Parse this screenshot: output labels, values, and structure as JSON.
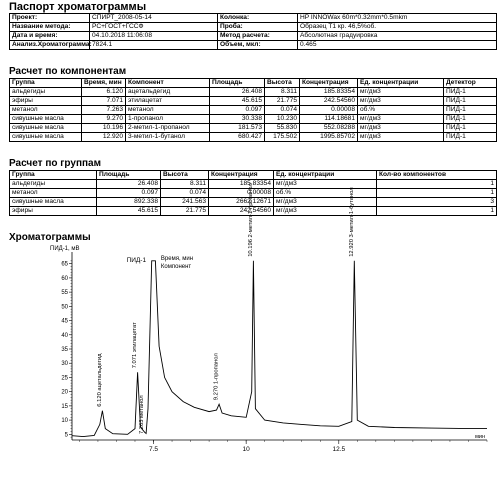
{
  "passport": {
    "title": "Паспорт хроматограммы",
    "rows": [
      {
        "label": "Проект:",
        "value": "СПИРТ_2008-05-14",
        "label2": "Колонка:",
        "value2": "HP INNOWax 60m*0.32mm*0.5mkm"
      },
      {
        "label": "Название метода:",
        "value": "РС+ГОСТ+ГССФ",
        "label2": "Проба:",
        "value2": "Образец Т1 кр. 46,5%об."
      },
      {
        "label": "Дата и время:",
        "value": "04.10.2018 11:06:08",
        "label2": "Метод расчета:",
        "value2": "Абсолютная градуировка"
      },
      {
        "label": "Анализ.Хроматограмма:",
        "value": "7824.1",
        "label2": "Объем, мкл:",
        "value2": "0.465"
      }
    ]
  },
  "components": {
    "title": "Расчет по компонентам",
    "headers": [
      "Группа",
      "Время, мин",
      "Компонент",
      "Площадь",
      "Высота",
      "Концентрация",
      "Ед. концентрации",
      "Детектор"
    ],
    "rows": [
      [
        "альдегиды",
        "6.120",
        "ацетальдегид",
        "26.408",
        "8.311",
        "185.83354",
        "мг/дм3",
        "ПИД-1"
      ],
      [
        "эфиры",
        "7.071",
        "этилацетат",
        "45.615",
        "21.775",
        "242.54560",
        "мг/дм3",
        "ПИД-1"
      ],
      [
        "метанол",
        "7.263",
        "метанол",
        "0.097",
        "0.074",
        "0.00008",
        "об.%",
        "ПИД-1"
      ],
      [
        "сивушные масла",
        "9.270",
        "1-пропанол",
        "30.338",
        "10.230",
        "114.18681",
        "мг/дм3",
        "ПИД-1"
      ],
      [
        "сивушные масла",
        "10.196",
        "2-метил-1-пропанол",
        "181.573",
        "55.830",
        "552.08288",
        "мг/дм3",
        "ПИД-1"
      ],
      [
        "сивушные масла",
        "12.920",
        "3-метил-1-бутанол",
        "680.427",
        "175.502",
        "1995.85702",
        "мг/дм3",
        "ПИД-1"
      ]
    ]
  },
  "groups": {
    "title": "Расчет по группам",
    "headers": [
      "Группа",
      "Площадь",
      "Высота",
      "Концентрация",
      "Ед. концентрации",
      "Кол-во компонентов"
    ],
    "rows": [
      [
        "альдегиды",
        "26.408",
        "8.311",
        "185.83354",
        "мг/дм3",
        "1"
      ],
      [
        "метанол",
        "0.097",
        "0.074",
        "0.00008",
        "об.%",
        "1"
      ],
      [
        "сивушные масла",
        "892.338",
        "241.563",
        "2662.12671",
        "мг/дм3",
        "3"
      ],
      [
        "эфиры",
        "45.615",
        "21.775",
        "242.54560",
        "мг/дм3",
        "1"
      ]
    ]
  },
  "chromatogram": {
    "title": "Хроматограммы",
    "y_axis_label": "ПИД-1, мВ",
    "trace_label": "ПИД-1",
    "legend_line1": "Время, мин",
    "legend_line2": "Компонент",
    "x_unit": "мин",
    "x_ticks": [
      "7.5",
      "10",
      "12.5"
    ],
    "y_ticks": [
      "65",
      "60",
      "55",
      "50",
      "45",
      "40",
      "35",
      "30",
      "25",
      "20",
      "15",
      "10",
      "5"
    ],
    "peak_labels": [
      "6.120 ацетальдегид",
      "7.071 этилацетат",
      "7.263 метанол",
      "9.270 1-пропанол",
      "10.196 2-метил-1-пропанол",
      "12.920 3-метил-1-бутанол"
    ],
    "line_color": "#000000"
  },
  "chart_data": {
    "type": "line",
    "title": "Хроматограммы",
    "ylabel": "ПИД-1, мВ",
    "xlabel": "мин",
    "xlim": [
      5.3,
      16.5
    ],
    "ylim": [
      3,
      67
    ],
    "x": [
      5.3,
      5.6,
      5.9,
      6.05,
      6.12,
      6.2,
      6.4,
      6.8,
      7.0,
      7.071,
      7.15,
      7.263,
      7.3,
      7.35,
      7.45,
      7.55,
      7.65,
      7.8,
      8.0,
      8.3,
      8.6,
      9.0,
      9.2,
      9.27,
      9.35,
      9.6,
      10.0,
      10.15,
      10.196,
      10.25,
      10.5,
      11.0,
      11.5,
      12.0,
      12.5,
      12.85,
      12.92,
      13.0,
      13.3,
      14.0,
      15.0,
      16.0,
      16.5
    ],
    "series": [
      {
        "values": [
          4.5,
          4.2,
          4.6,
          8.5,
          13.3,
          7.0,
          5.2,
          5.0,
          7.0,
          26.8,
          7.5,
          5.7,
          5.3,
          14.0,
          66.0,
          66.0,
          36.0,
          25.0,
          20.0,
          16.5,
          14.5,
          13.0,
          13.5,
          15.6,
          12.5,
          11.5,
          11.0,
          20.0,
          66.0,
          14.0,
          10.0,
          9.0,
          8.5,
          8.0,
          7.8,
          9.5,
          66.0,
          10.0,
          7.8,
          7.4,
          7.2,
          7.0,
          7.0
        ]
      }
    ],
    "peaks": [
      {
        "time": 6.12,
        "label": "6.120 ацетальдегид"
      },
      {
        "time": 7.071,
        "label": "7.071 этилацетат"
      },
      {
        "time": 7.263,
        "label": "7.263 метанол"
      },
      {
        "time": 9.27,
        "label": "9.270 1-пропанол"
      },
      {
        "time": 10.196,
        "label": "10.196 2-метил-1-пропанол"
      },
      {
        "time": 12.92,
        "label": "12.920 3-метил-1-бутанол"
      }
    ]
  }
}
